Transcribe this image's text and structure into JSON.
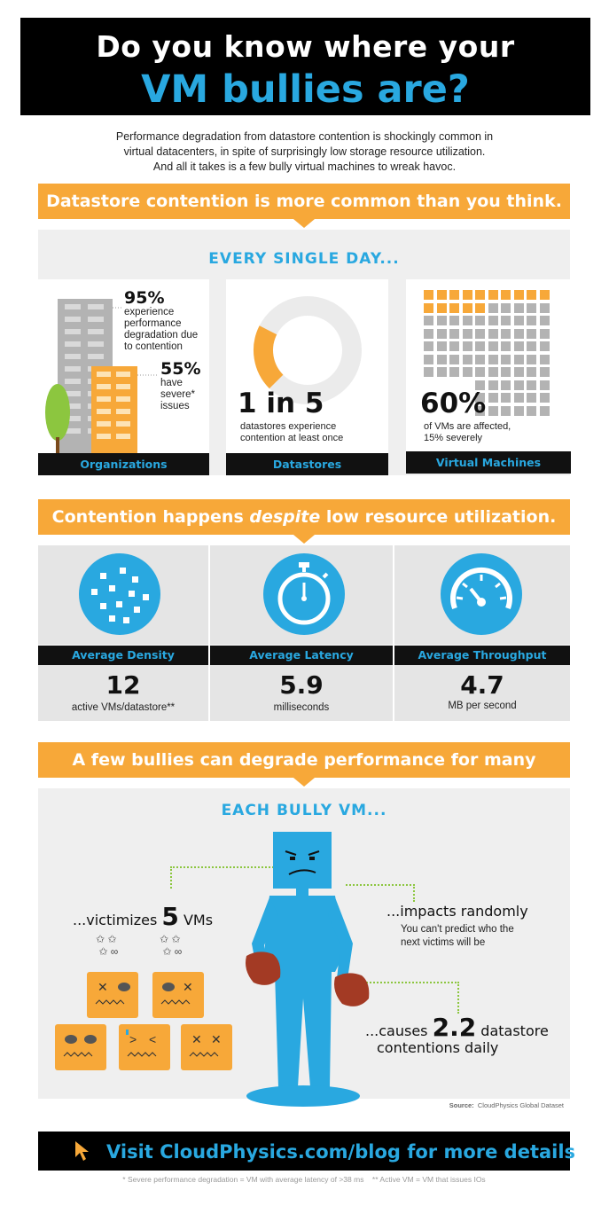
{
  "header": {
    "title_line1": "Do you know where your",
    "title_line2": "VM bullies are?"
  },
  "intro": {
    "line1": "Performance degradation from datastore contention is shockingly common in",
    "line2": "virtual datacenters, in spite of surprisingly low storage resource utilization.",
    "line3": "And all it takes is a few bully virtual machines to wreak havoc."
  },
  "section1": {
    "banner": "Datastore contention is more common than you think.",
    "subtitle": "EVERY SINGLE DAY...",
    "organizations": {
      "label": "Organizations",
      "stat1_value": "95%",
      "stat1_text1": "experience",
      "stat1_text2": "performance",
      "stat1_text3": "degradation due",
      "stat1_text4": "to contention",
      "stat2_value": "55%",
      "stat2_text1": "have",
      "stat2_text2": "severe*",
      "stat2_text3": "issues"
    },
    "datastores": {
      "label": "Datastores",
      "value": "1 in 5",
      "text1": "datastores experience",
      "text2": "contention at least once",
      "donut_fraction": 0.2
    },
    "vms": {
      "label": "Virtual Machines",
      "value": "60%",
      "text1": "of VMs are affected,",
      "text2": "15% severely",
      "affected_fraction": 0.15
    }
  },
  "section2": {
    "banner_pre": "Contention happens ",
    "banner_em": "despite",
    "banner_post": " low resource utilization.",
    "metrics": [
      {
        "label": "Average Density",
        "value": "12",
        "unit": "active VMs/datastore**"
      },
      {
        "label": "Average Latency",
        "value": "5.9",
        "unit": "milliseconds"
      },
      {
        "label": "Average Throughput",
        "value": "4.7",
        "unit": "MB per second"
      }
    ]
  },
  "section3": {
    "banner": "A few bullies can degrade performance for many victims.",
    "subtitle": "EACH BULLY VM...",
    "victimizes_pre": "...victimizes ",
    "victimizes_num": "5",
    "victimizes_post": " VMs",
    "impacts_title": "...impacts randomly",
    "impacts_text1": "You can't predict who the",
    "impacts_text2": "next victims will be",
    "causes_pre": "...causes ",
    "causes_num": "2.2",
    "causes_post": " datastore",
    "causes_line2": "contentions daily",
    "source_label": "Source:",
    "source_text": "CloudPhysics Global Dataset"
  },
  "footer": {
    "cta": "Visit CloudPhysics.com/blog for more details",
    "footnote": "* Severe performance degradation = VM with average latency of >38 ms    ** Active VM = VM that issues IOs"
  },
  "colors": {
    "accent_blue": "#29a8e0",
    "accent_orange": "#f7a839",
    "dark": "#111111",
    "panel_gray": "#efefef",
    "tree_green": "#8cc63f"
  },
  "icons": {
    "density": "dots-circle-icon",
    "latency": "stopwatch-icon",
    "throughput": "speedometer-icon",
    "cursor": "cursor-arrow-icon"
  }
}
